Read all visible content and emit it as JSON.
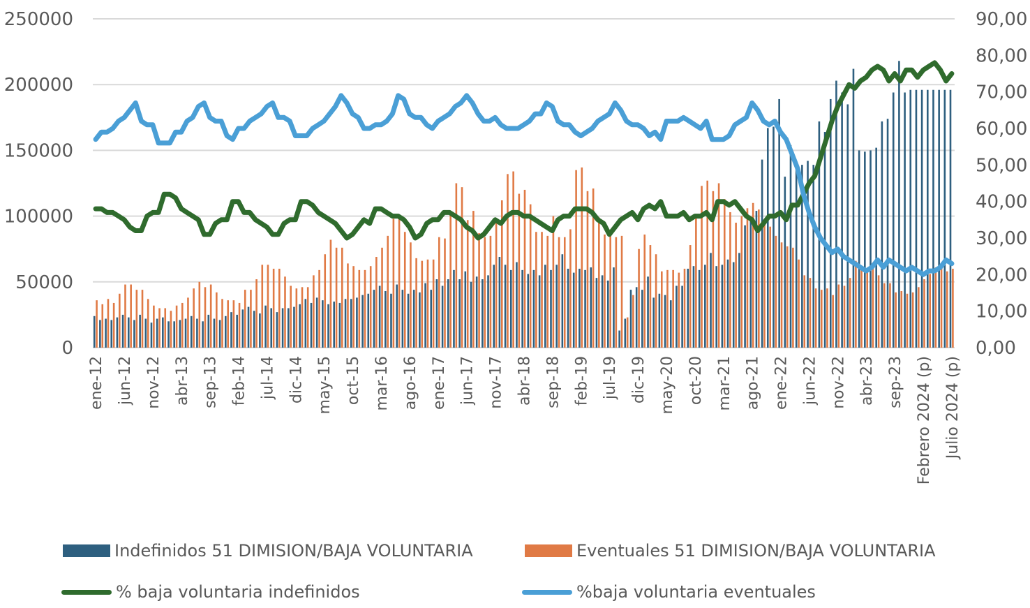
{
  "chart_data": {
    "type": "bar+line",
    "title": "",
    "xlabel": "",
    "ylabel_left": "",
    "ylabel_right": "",
    "ylim_left": [
      0,
      250000
    ],
    "ylim_right": [
      0,
      90
    ],
    "yticks_left": [
      "0",
      "50000",
      "100000",
      "150000",
      "200000",
      "250000"
    ],
    "yticks_right": [
      "0,00",
      "10,00",
      "20,00",
      "30,00",
      "40,00",
      "50,00",
      "60,00",
      "70,00",
      "80,00",
      "90,00"
    ],
    "grid": true,
    "legend_position": "bottom",
    "x_tick_labels": [
      "ene-12",
      "jun-12",
      "nov-12",
      "abr-13",
      "sep-13",
      "feb-14",
      "jul-14",
      "dic-14",
      "may-15",
      "oct-15",
      "mar-16",
      "ago-16",
      "ene-17",
      "jun-17",
      "nov-17",
      "abr-18",
      "sep-18",
      "feb-19",
      "jul-19",
      "dic-19",
      "may-20",
      "oct-20",
      "mar-21",
      "ago-21",
      "ene-22",
      "jun-22",
      "nov-22",
      "abr-23",
      "sep-23",
      "Febrero 2024 (p)",
      "Julio 2024 (p)"
    ],
    "x_tick_every": 5,
    "n_months": 151,
    "series": [
      {
        "name": "Indefinidos 51 DIMISION/BAJA VOLUNTARIA",
        "type": "bar",
        "axis": "left",
        "color": "#2E5F7F",
        "values": [
          24000,
          21000,
          22000,
          21000,
          23000,
          25000,
          23000,
          21000,
          25000,
          22000,
          19000,
          22000,
          23000,
          20000,
          20000,
          21000,
          22000,
          24000,
          22000,
          20000,
          25000,
          22000,
          21000,
          24000,
          27000,
          25000,
          29000,
          31000,
          28000,
          26000,
          32000,
          30000,
          27000,
          30000,
          30000,
          31000,
          33000,
          37000,
          34000,
          38000,
          36000,
          33000,
          35000,
          34000,
          37000,
          37000,
          38000,
          40000,
          41000,
          44000,
          47000,
          43000,
          41000,
          48000,
          44000,
          41000,
          44000,
          42000,
          49000,
          44000,
          52000,
          47000,
          52000,
          59000,
          52000,
          58000,
          50000,
          54000,
          52000,
          55000,
          63000,
          69000,
          63000,
          59000,
          65000,
          59000,
          56000,
          59000,
          55000,
          63000,
          59000,
          63000,
          71000,
          60000,
          57000,
          60000,
          59000,
          61000,
          53000,
          55000,
          51000,
          61000,
          13000,
          22000,
          44000,
          46000,
          44000,
          54000,
          38000,
          41000,
          40000,
          36000,
          47000,
          47000,
          60000,
          62000,
          59000,
          63000,
          72000,
          62000,
          63000,
          67000,
          65000,
          72000,
          93000,
          98000,
          104000,
          143000,
          167000,
          168000,
          189000,
          130000,
          154000,
          140000,
          139000,
          142000,
          139000,
          172000,
          164000,
          189000,
          203000,
          194000,
          185000,
          212000,
          150000,
          149000,
          150000,
          152000,
          172000,
          174000,
          194000,
          218000,
          194000,
          196000,
          196000,
          196000,
          196000,
          196000,
          196000,
          196000,
          196000
        ],
        "note": "values read approximately from pixel heights"
      },
      {
        "name": "Eventuales 51 DIMISION/BAJA VOLUNTARIA",
        "type": "bar",
        "axis": "left",
        "color": "#E07A45",
        "values": [
          36000,
          33000,
          37000,
          34000,
          41000,
          48000,
          48000,
          44000,
          44000,
          37000,
          32000,
          30000,
          30000,
          28000,
          32000,
          34000,
          38000,
          45000,
          50000,
          46000,
          48000,
          42000,
          37000,
          36000,
          36000,
          34000,
          44000,
          44000,
          52000,
          63000,
          63000,
          60000,
          60000,
          54000,
          47000,
          45000,
          46000,
          46000,
          55000,
          59000,
          71000,
          82000,
          76000,
          76000,
          64000,
          62000,
          59000,
          59000,
          62000,
          69000,
          76000,
          85000,
          98000,
          101000,
          88000,
          80000,
          68000,
          66000,
          67000,
          67000,
          84000,
          83000,
          104000,
          125000,
          122000,
          97000,
          104000,
          87000,
          84000,
          85000,
          97000,
          112000,
          132000,
          134000,
          117000,
          120000,
          109000,
          88000,
          88000,
          85000,
          100000,
          84000,
          84000,
          90000,
          135000,
          137000,
          119000,
          121000,
          99000,
          86000,
          86000,
          84000,
          85000,
          23000,
          40000,
          75000,
          86000,
          78000,
          71000,
          58000,
          59000,
          59000,
          57000,
          60000,
          78000,
          100000,
          123000,
          127000,
          119000,
          125000,
          113000,
          103000,
          95000,
          100000,
          106000,
          110000,
          105000,
          97000,
          92000,
          85000,
          80000,
          77000,
          76000,
          67000,
          55000,
          53000,
          45000,
          44000,
          45000,
          40000,
          48000,
          47000,
          53000,
          66000,
          62000,
          58000,
          61000,
          55000,
          49000,
          49000,
          42000,
          43000,
          41000,
          42000,
          46000,
          52000,
          56000,
          61000,
          60000,
          58000,
          60000
        ]
      },
      {
        "name": "% baja voluntaria indefinidos",
        "type": "line",
        "axis": "right",
        "color": "#2F6B2D",
        "values": [
          38,
          38,
          37,
          37,
          36,
          35,
          33,
          32,
          32,
          36,
          37,
          37,
          42,
          42,
          41,
          38,
          37,
          36,
          35,
          31,
          31,
          34,
          35,
          35,
          40,
          40,
          37,
          37,
          35,
          34,
          33,
          31,
          31,
          34,
          35,
          35,
          40,
          40,
          39,
          37,
          36,
          35,
          34,
          32,
          30,
          31,
          33,
          35,
          34,
          38,
          38,
          37,
          36,
          36,
          35,
          33,
          30,
          31,
          34,
          35,
          35,
          37,
          37,
          36,
          35,
          33,
          32,
          30,
          31,
          33,
          35,
          34,
          36,
          37,
          37,
          36,
          36,
          35,
          34,
          33,
          32,
          35,
          36,
          36,
          38,
          38,
          38,
          37,
          35,
          34,
          31,
          33,
          35,
          36,
          37,
          35,
          38,
          39,
          38,
          40,
          36,
          36,
          36,
          37,
          35,
          36,
          36,
          37,
          35,
          40,
          40,
          39,
          40,
          38,
          36,
          35,
          32,
          34,
          36,
          36,
          37,
          35,
          39,
          39,
          42,
          45,
          47,
          52,
          57,
          62,
          66,
          69,
          72,
          71,
          73,
          74,
          76,
          77,
          76,
          73,
          75,
          73,
          76,
          76,
          74,
          76,
          77,
          78,
          76,
          73,
          75
        ],
        "note": "percentages read approximately"
      },
      {
        "name": "%baja voluntaria eventuales",
        "type": "line",
        "axis": "right",
        "color": "#4A9FD6",
        "values": [
          57,
          59,
          59,
          60,
          62,
          63,
          65,
          67,
          62,
          61,
          61,
          56,
          56,
          56,
          59,
          59,
          62,
          63,
          66,
          67,
          63,
          62,
          62,
          58,
          57,
          60,
          60,
          62,
          63,
          64,
          66,
          67,
          63,
          63,
          62,
          58,
          58,
          58,
          60,
          61,
          62,
          64,
          66,
          69,
          67,
          64,
          63,
          60,
          60,
          61,
          61,
          62,
          64,
          69,
          68,
          64,
          63,
          63,
          61,
          60,
          62,
          63,
          64,
          66,
          67,
          69,
          67,
          64,
          62,
          62,
          63,
          61,
          60,
          60,
          60,
          61,
          62,
          64,
          64,
          67,
          66,
          62,
          61,
          61,
          59,
          58,
          59,
          60,
          62,
          63,
          64,
          67,
          65,
          62,
          61,
          61,
          60,
          58,
          59,
          57,
          62,
          62,
          62,
          63,
          62,
          61,
          60,
          62,
          57,
          57,
          57,
          58,
          61,
          62,
          63,
          67,
          65,
          62,
          61,
          62,
          59,
          57,
          53,
          49,
          42,
          37,
          33,
          30,
          28,
          26,
          27,
          25,
          24,
          23,
          22,
          21,
          22,
          24,
          22,
          24,
          23,
          22,
          21,
          22,
          21,
          20,
          21,
          21,
          22,
          24,
          23
        ]
      }
    ]
  },
  "legend": {
    "items": [
      {
        "label": "Indefinidos 51 DIMISION/BAJA VOLUNTARIA",
        "color": "#2E5F7F",
        "kind": "bar"
      },
      {
        "label": "Eventuales 51 DIMISION/BAJA VOLUNTARIA",
        "color": "#E07A45",
        "kind": "bar"
      },
      {
        "label": "% baja voluntaria indefinidos",
        "color": "#2F6B2D",
        "kind": "line"
      },
      {
        "label": "%baja voluntaria eventuales",
        "color": "#4A9FD6",
        "kind": "line"
      }
    ]
  }
}
